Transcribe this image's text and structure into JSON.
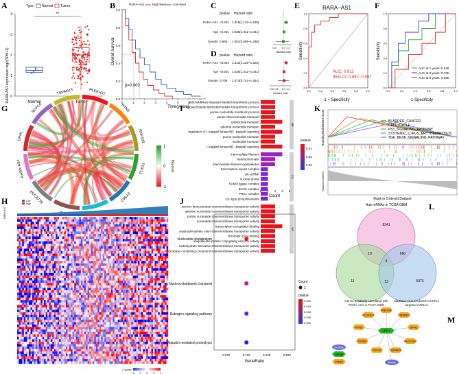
{
  "panels": {
    "A": {
      "letter": "A",
      "legend_title": "Type",
      "legend_items": [
        "Normal",
        "Tumor"
      ],
      "ylabel": "RARA-AS1 expression log2(TPM+1)",
      "significance": "**",
      "yticks": [
        "0",
        "1",
        "2",
        "3",
        "4"
      ],
      "chart_data": {
        "type": "box",
        "categories": [
          "Normal",
          "Tumor"
        ],
        "medians": [
          1.25,
          2.0
        ],
        "q1": [
          1.15,
          1.65
        ],
        "q3": [
          1.4,
          2.35
        ],
        "whisker_low": [
          1.1,
          0.3
        ],
        "whisker_high": [
          1.45,
          3.4
        ],
        "ylim": [
          0,
          4
        ],
        "colors": [
          "#3b5ba5",
          "#d62b2b"
        ]
      }
    },
    "B": {
      "letter": "B",
      "legend_title": "RARA-AS1",
      "legend_items": [
        "High level",
        "Low level"
      ],
      "ylabel": "Overall survival",
      "xlabel": "Time(years)",
      "pvalue": "p=0.003",
      "yticks": [
        "0.0",
        "0.2",
        "0.4",
        "0.6",
        "0.8",
        "1.0"
      ],
      "xticks": [
        "0",
        "1",
        "2",
        "3",
        "4",
        "5",
        "6",
        "7"
      ],
      "chart_data": {
        "type": "line",
        "xlim": [
          0,
          7.5
        ],
        "ylim": [
          0,
          1
        ],
        "series": [
          {
            "name": "High level",
            "color": "#d62b2b",
            "x": [
              0,
              0.3,
              0.6,
              0.9,
              1.2,
              1.5,
              1.9,
              2.3,
              2.8,
              3.3,
              3.8,
              4.5
            ],
            "y": [
              1.0,
              0.82,
              0.66,
              0.52,
              0.4,
              0.3,
              0.22,
              0.15,
              0.1,
              0.06,
              0.03,
              0.0
            ]
          },
          {
            "name": "Low level",
            "color": "#3b5ba5",
            "x": [
              0,
              0.3,
              0.6,
              0.9,
              1.2,
              1.6,
              2.0,
              2.5,
              3.0,
              3.5,
              4.0,
              4.8,
              5.5,
              6.2,
              7.0
            ],
            "y": [
              1.0,
              0.9,
              0.78,
              0.66,
              0.56,
              0.46,
              0.38,
              0.3,
              0.22,
              0.16,
              0.12,
              0.08,
              0.05,
              0.03,
              0.02
            ]
          }
        ]
      }
    },
    "C": {
      "letter": "C",
      "headers": [
        "pvalue",
        "Hazard ratio"
      ],
      "rows": [
        {
          "name": "RARA-AS1",
          "p": "<0.001",
          "hr": "1.316(1.133~1.528)"
        },
        {
          "name": "Age",
          "p": "<0.001",
          "hr": "1.026(1.012~1.041)"
        },
        {
          "name": "Gender",
          "p": "0.665",
          "hr": "1.001(0.689~1.446)"
        }
      ],
      "axis_label": "Hazard ratio",
      "xticks": [
        "0.6",
        "1.0",
        "1.2"
      ]
    },
    "D": {
      "letter": "D",
      "headers": [
        "pvalue",
        "Hazard ratio"
      ],
      "rows": [
        {
          "name": "RARA-AS1",
          "p": "<0.001",
          "hr": "1.312(1.128~1.526)"
        },
        {
          "name": "Age",
          "p": "<0.001",
          "hr": "1.025(1.012~1.041)"
        },
        {
          "name": "Gender",
          "p": "0.708",
          "hr": "1.073(0.742~1.552)"
        }
      ],
      "axis_label": "Hazard ratio",
      "xticks": [
        "0.6",
        "0.8",
        "1.0",
        "1.2"
      ]
    },
    "E": {
      "letter": "E",
      "title": "RARA−AS1",
      "ylabel": "Sensitivity",
      "xlabel": "1 − Specificity",
      "auc": "AUC: 0.911",
      "ci": "95% CI: 0.857−0.957",
      "ticks": [
        "0.0",
        "0.2",
        "0.4",
        "0.6",
        "0.8",
        "1.0"
      ],
      "chart_data": {
        "type": "line",
        "x": [
          0,
          0,
          0.05,
          0.05,
          0.1,
          0.1,
          0.2,
          0.2,
          0.35,
          0.35,
          0.5,
          0.5,
          0.8,
          1.0
        ],
        "y": [
          0,
          0.55,
          0.55,
          0.75,
          0.75,
          0.85,
          0.85,
          0.9,
          0.9,
          0.95,
          0.95,
          1.0,
          1.0,
          1.0
        ],
        "color": "#d62b2b"
      }
    },
    "F": {
      "letter": "F",
      "ylabel": "Sensitivity",
      "xlabel": "1-Specificity",
      "ticks": [
        "0.0",
        "0.2",
        "0.4",
        "0.6",
        "0.8",
        "1.0"
      ],
      "legend": [
        {
          "label": "AUC at 1 years: 0.649",
          "color": "#2ca02c"
        },
        {
          "label": "AUC at 3 years: 0.735",
          "color": "#3b3bd6"
        },
        {
          "label": "AUC at 5 years: 0.595",
          "color": "#d62b2b"
        }
      ],
      "chart_data": {
        "type": "line",
        "series": [
          {
            "name": "AUC at 1 years: 0.649",
            "color": "#2ca02c",
            "x": [
              0,
              0.05,
              0.05,
              0.15,
              0.15,
              0.3,
              0.3,
              0.5,
              0.5,
              0.7,
              0.7,
              1.0
            ],
            "y": [
              0,
              0,
              0.3,
              0.3,
              0.5,
              0.5,
              0.65,
              0.65,
              0.8,
              0.8,
              1.0,
              1.0
            ]
          },
          {
            "name": "AUC at 3 years: 0.735",
            "color": "#3b3bd6",
            "x": [
              0,
              0.05,
              0.05,
              0.15,
              0.15,
              0.25,
              0.25,
              0.45,
              0.45,
              0.6,
              0.6,
              1.0
            ],
            "y": [
              0,
              0,
              0.35,
              0.35,
              0.6,
              0.6,
              0.75,
              0.75,
              0.9,
              0.9,
              1.0,
              1.0
            ]
          },
          {
            "name": "AUC at 5 years: 0.595",
            "color": "#d62b2b",
            "x": [
              0,
              0.1,
              0.1,
              0.3,
              0.3,
              0.5,
              0.5,
              0.7,
              0.7,
              0.85,
              0.85,
              1.0
            ],
            "y": [
              0,
              0,
              0.25,
              0.25,
              0.45,
              0.45,
              0.6,
              0.6,
              0.75,
              0.75,
              1.0,
              1.0
            ]
          }
        ]
      }
    },
    "G": {
      "letter": "G",
      "genes": [
        "PLEKHJ1",
        "RTN3",
        "RNF103",
        "FGF12",
        "SYNE2",
        "IQGAP3",
        "RARA",
        "BLOC1S4",
        "RARA-AS1",
        "DPH1",
        "NOP16",
        "TSPAN13"
      ],
      "scale_label": "Pearson",
      "scale_ticks": [
        "1",
        "0",
        "-1"
      ]
    },
    "H": {
      "letter": "H",
      "group_label": "RARA-AS1",
      "legend_items": [
        "Low",
        "High"
      ],
      "scale_title": "Z-score",
      "scale_ticks": [
        "-4",
        "-2",
        "0",
        "2",
        "4"
      ]
    },
    "I": {
      "letter": "I",
      "xlabel": "Count",
      "xticks": [
        "0",
        "1",
        "2",
        "3",
        "4"
      ],
      "legend_title": "pvalue",
      "legend_ticks": [
        "0.01",
        "0.02",
        "0.03"
      ],
      "chart_data": {
        "type": "bar",
        "groups": [
          {
            "name": "BP",
            "categories": [
              "dolichol-linked oligosaccharide biosynthetic process",
              "oligosaccharide-lipid intermediate biosynthetic process",
              "purine nucleotide metabolic process",
              "purine ribonucleoside transport",
              "endosomal transport",
              "adenine nucleotide transport",
              "regulation of I−kappaB kinase/NF−kappaB signaling",
              "purine nucleotide transport",
              "nucleotide transport",
              "I−kappaB kinase/NF−kappaB signaling"
            ],
            "values": [
              2,
              2,
              2,
              2,
              3,
              2,
              3,
              2,
              2,
              3
            ]
          },
          {
            "name": "CC",
            "categories": [
              "intermediate filament",
              "heterochromatin",
              "intermediate filament cytoskeleton",
              "transcription export complex",
              "U6 snRNP",
              "nuclear amina",
              "SUMO ligase complex",
              "BLOC complex",
              "PRC1 complex",
              "U2−type prespliceosome"
            ],
            "values": [
              3,
              2,
              2,
              1,
              1,
              1,
              1,
              1,
              1,
              1
            ]
          },
          {
            "name": "MF",
            "categories": [
              "purine ribonucleotide transmembrane transporter activity",
              "adenine nucleotide transmembrane transporter activity",
              "purine nucleotide transmembrane transporter activity",
              "nucleotide transmembrane transporter activity",
              "transcription coregulator binding",
              "organophosphate ester transmembrane transporter activity",
              "chromatin DNA binding",
              "ubiquitin-like protein conjugating enzyme activity",
              "carbohydrate derivative transmembrane transporter activity",
              "nucleobase-containing compound transmembrane transporter activity"
            ],
            "values": [
              2,
              2,
              2,
              2,
              3,
              2,
              2,
              2,
              2,
              2
            ]
          }
        ],
        "xlim": [
          0,
          4
        ]
      }
    },
    "J": {
      "letter": "J",
      "xlabel": "GeneRatio",
      "xticks": [
        "0.075",
        "0.100",
        "0.125",
        "0.150"
      ],
      "count_title": "Count",
      "count_value": "1",
      "pvalue_title": "pvalue",
      "pvalue_ticks": [
        "0.020",
        "0.025",
        "0.030",
        "0.035",
        "0.040"
      ],
      "chart_data": {
        "type": "scatter",
        "categories": [
          "Nucleotide metabolism",
          "Nucleocytoplasmic transport",
          "Estrogen signaling pathway",
          "Ubiquitin mediated proteolysis"
        ],
        "x": [
          0.1,
          0.1,
          0.1,
          0.1
        ],
        "pvalue": [
          0.02,
          0.025,
          0.035,
          0.04
        ],
        "colors": [
          "#e8141c",
          "#b01ca8",
          "#6a1bd0",
          "#2525e0"
        ],
        "xlim": [
          0.06,
          0.16
        ]
      }
    },
    "K": {
      "letter": "K",
      "ylabel_top": "Running Enrichment Score",
      "ylabel_bottom": "Ranked List Metric",
      "xlabel": "Rank in Ordered Dataset",
      "pathways": [
        {
          "name": "BLADDER_CANCER",
          "color": "#e8474c"
        },
        {
          "name": "CELL_CYCLE",
          "color": "#c6a23b"
        },
        {
          "name": "P53_SIGNALING_PATHWAY",
          "color": "#62b84c"
        },
        {
          "name": "SYSTEMIC_LUPUS_ERYTHEMATOSUS",
          "color": "#3ab8c6"
        },
        {
          "name": "TGF_BETA_SIGNALING_PATHWAY",
          "color": "#b45bd6"
        }
      ]
    },
    "L": {
      "letter": "L",
      "top_label": "Hub mRNAs in TCGA GBM",
      "left_label": "Genes positively correlated with RARA-AS1 in TCGA GBM",
      "right_label": "starBase v2.0 predicted CSTZT1 targeted mRNAs",
      "counts": {
        "top_only": "8341",
        "left_only": "11",
        "right_only": "5373",
        "top_left": "10",
        "top_right": "660",
        "all": "9",
        "left_right": "13"
      }
    },
    "M": {
      "letter": "M",
      "center": "LRP1",
      "targets": [
        "RNF103",
        "TSPAN13",
        "DPH1",
        "BLOC1S4",
        "IQGAP3",
        "FGF12",
        "SYNE2",
        "RTN3",
        "PLEKHJ1",
        "NOP16",
        "RARA"
      ],
      "legend_items": [
        "lncRNA",
        "miRNA",
        "mRNA"
      ],
      "colors": {
        "lnc": "#6b6bd6",
        "mi": "#22b822",
        "m": "#f5a623"
      }
    }
  }
}
